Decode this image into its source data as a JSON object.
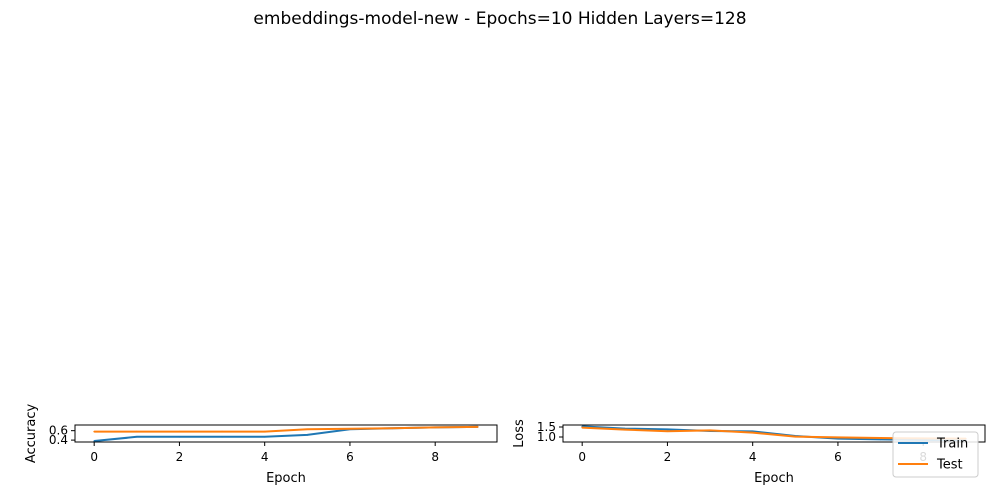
{
  "figure": {
    "title": "embeddings-model-new - Epochs=10 Hidden Layers=128"
  },
  "colors": {
    "train": "#1f77b4",
    "test": "#ff7f0e"
  },
  "chart_data": [
    {
      "type": "line",
      "xlabel": "Epoch",
      "ylabel": "Accuracy",
      "x": [
        0,
        1,
        2,
        3,
        4,
        5,
        6,
        7,
        8,
        9
      ],
      "xlim": [
        -0.45,
        9.45
      ],
      "ylim": [
        0.36,
        0.72
      ],
      "xticks": [
        0,
        2,
        4,
        6,
        8
      ],
      "yticks": [
        0.4,
        0.6
      ],
      "ytick_labels": [
        "0.4",
        "0.6"
      ],
      "series": [
        {
          "name": "Train",
          "values": [
            0.38,
            0.47,
            0.47,
            0.47,
            0.47,
            0.51,
            0.63,
            0.65,
            0.67,
            0.68
          ]
        },
        {
          "name": "Test",
          "values": [
            0.58,
            0.58,
            0.58,
            0.58,
            0.58,
            0.63,
            0.64,
            0.65,
            0.67,
            0.68
          ]
        }
      ]
    },
    {
      "type": "line",
      "xlabel": "Epoch",
      "ylabel": "Loss",
      "x": [
        0,
        1,
        2,
        3,
        4,
        5,
        6,
        7,
        8,
        9
      ],
      "xlim": [
        -0.45,
        9.45
      ],
      "ylim": [
        0.75,
        1.6
      ],
      "xticks": [
        0,
        2,
        4,
        6,
        8
      ],
      "yticks": [
        1.0,
        1.5
      ],
      "ytick_labels": [
        "1.0",
        "1.5"
      ],
      "series": [
        {
          "name": "Train",
          "values": [
            1.53,
            1.42,
            1.38,
            1.3,
            1.28,
            1.05,
            0.92,
            0.88,
            0.85,
            0.84
          ]
        },
        {
          "name": "Test",
          "values": [
            1.47,
            1.37,
            1.29,
            1.33,
            1.22,
            1.02,
            0.98,
            0.95,
            0.93,
            0.92
          ]
        }
      ],
      "legend": {
        "position": "lower right",
        "entries": [
          "Train",
          "Test"
        ]
      }
    }
  ]
}
